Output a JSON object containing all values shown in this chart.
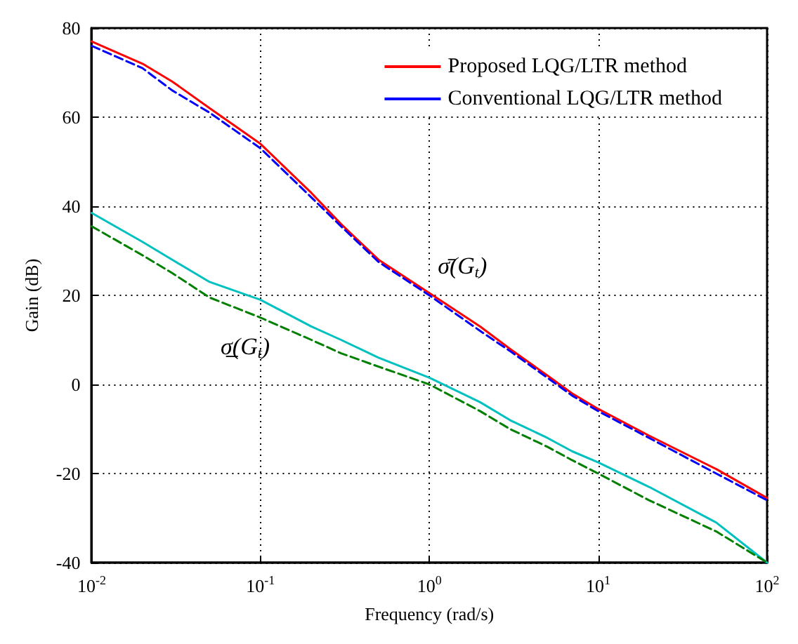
{
  "chart_data": {
    "type": "line",
    "xlabel": "Frequency (rad/s)",
    "ylabel": "Gain (dB)",
    "log": "x",
    "grid": true,
    "legend": "top right",
    "marker": "none",
    "xlim": [
      0.01,
      100
    ],
    "xticks": [
      {
        "value": 0.01,
        "label": "10$^{-2}$"
      },
      {
        "value": 0.1,
        "label": "10$^{-1}$"
      },
      {
        "value": 1,
        "label": "10$^{0}$"
      },
      {
        "value": 10,
        "label": "10$^{1}$"
      },
      {
        "value": 100,
        "label": "10$^{2}$"
      }
    ],
    "ylim": [
      -40,
      80
    ],
    "yticks": [
      -40,
      -20,
      0,
      20,
      40,
      60,
      80
    ],
    "x": [
      0.01,
      0.02,
      0.03,
      0.05,
      0.1,
      0.2,
      0.3,
      0.5,
      1,
      2,
      3,
      5,
      7,
      10,
      20,
      50,
      100
    ],
    "series": [
      {
        "name": "Proposed LQG/LTR method",
        "color": "#ff0000",
        "line_style": "solid",
        "values": [
          77,
          72,
          68,
          62,
          54,
          43,
          36,
          28,
          20.5,
          13,
          8,
          2,
          -2,
          -5.5,
          -11.5,
          -19,
          -25.5
        ]
      },
      {
        "name": "Conventional LQG/LTR method",
        "color": "#0000ff",
        "line_style": "dashed",
        "values": [
          76,
          71,
          66,
          61,
          53,
          42,
          35.5,
          27.5,
          20,
          12,
          7.5,
          1.5,
          -2.5,
          -6,
          -12,
          -20,
          -26
        ]
      },
      {
        "color": "#00c0c0",
        "line_style": "solid",
        "values": [
          38.5,
          32,
          28,
          23,
          19,
          13,
          10,
          6,
          1.5,
          -4,
          -8,
          -12,
          -15,
          -17.5,
          -23,
          -31,
          -40
        ]
      },
      {
        "color": "#008000",
        "line_style": "dashed",
        "values": [
          35.5,
          29,
          25,
          19.5,
          15,
          10,
          7,
          4,
          0,
          -6,
          -10,
          -14,
          -17,
          -20,
          -26,
          -33,
          -40
        ]
      }
    ],
    "annotations": [
      "σ̄(G$_{t}$)",
      "σ̲(G$_{t}$)"
    ]
  }
}
